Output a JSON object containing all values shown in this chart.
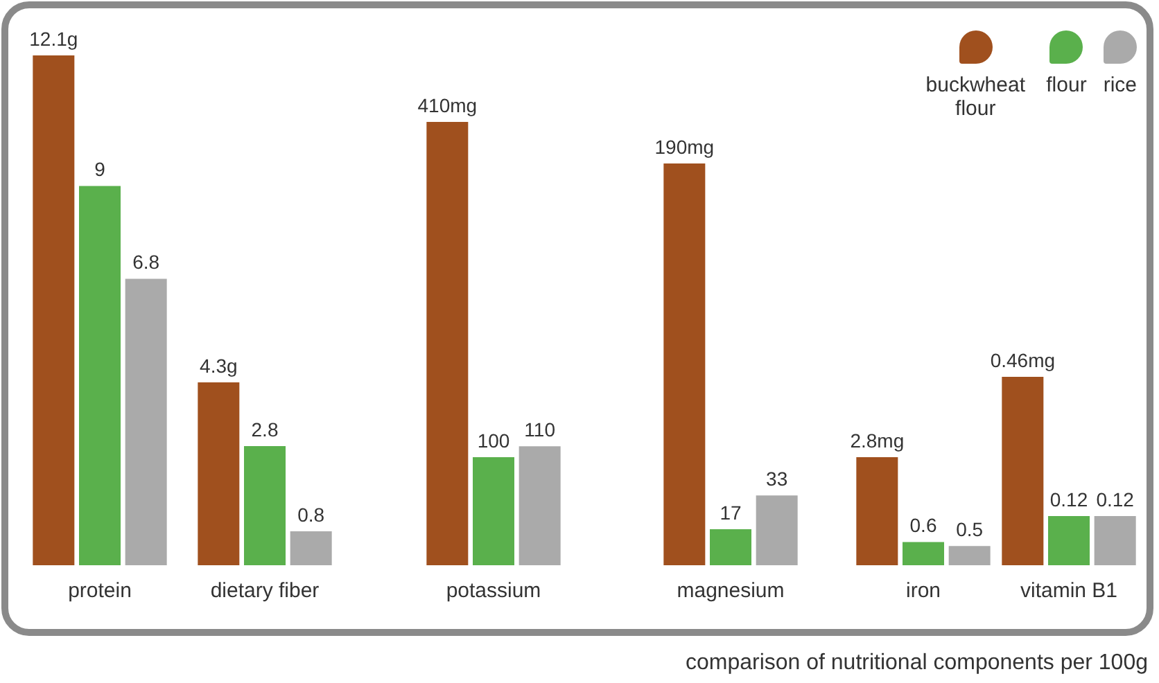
{
  "chart_data": [
    {
      "type": "bar",
      "categories": [
        "protein"
      ],
      "tick_labels": "x",
      "series": [
        {
          "color": "#a0501e",
          "values": [
            12.1
          ],
          "value_labels": [
            "12.1g"
          ]
        },
        {
          "color": "#5ab04c",
          "values": [
            9
          ],
          "value_labels": [
            "9"
          ]
        },
        {
          "color": "#aaaaaa",
          "values": [
            6.8
          ],
          "value_labels": [
            "6.8"
          ]
        }
      ]
    },
    {
      "type": "bar",
      "categories": [
        "dietary fiber"
      ],
      "tick_labels": "x",
      "series": [
        {
          "color": "#a0501e",
          "values": [
            4.3
          ],
          "value_labels": [
            "4.3g"
          ]
        },
        {
          "color": "#5ab04c",
          "values": [
            2.8
          ],
          "value_labels": [
            "2.8"
          ]
        },
        {
          "color": "#aaaaaa",
          "values": [
            0.8
          ],
          "value_labels": [
            "0.8"
          ]
        }
      ]
    },
    {
      "type": "bar",
      "categories": [
        "potassium"
      ],
      "tick_labels": "x",
      "series": [
        {
          "color": "#a0501e",
          "values": [
            410
          ],
          "value_labels": [
            "410mg"
          ]
        },
        {
          "color": "#5ab04c",
          "values": [
            100
          ],
          "value_labels": [
            "100"
          ]
        },
        {
          "color": "#aaaaaa",
          "values": [
            110
          ],
          "value_labels": [
            "110"
          ]
        }
      ]
    },
    {
      "type": "bar",
      "categories": [
        "magnesium"
      ],
      "tick_labels": "x",
      "series": [
        {
          "color": "#a0501e",
          "values": [
            190
          ],
          "value_labels": [
            "190mg"
          ]
        },
        {
          "color": "#5ab04c",
          "values": [
            17
          ],
          "value_labels": [
            "17"
          ]
        },
        {
          "color": "#aaaaaa",
          "values": [
            33
          ],
          "value_labels": [
            "33"
          ]
        }
      ]
    },
    {
      "type": "bar",
      "categories": [
        "iron"
      ],
      "tick_labels": "x",
      "legend": "top right",
      "series": [
        {
          "name": "buckwheat flour",
          "color": "#a0501e",
          "values": [
            2.8
          ],
          "value_labels": [
            "2.8mg"
          ]
        },
        {
          "name": "flour",
          "color": "#5ab04c",
          "values": [
            0.6
          ],
          "value_labels": [
            "0.6"
          ]
        },
        {
          "name": "rice",
          "color": "#aaaaaa",
          "values": [
            0.5
          ],
          "value_labels": [
            "0.5"
          ]
        }
      ]
    },
    {
      "type": "bar",
      "categories": [
        "vitamin B1"
      ],
      "tick_labels": "x",
      "annotations": [
        "comparison of nutritional components per 100g"
      ],
      "series": [
        {
          "color": "#a0501e",
          "values": [
            0.46
          ],
          "value_labels": [
            "0.46mg"
          ]
        },
        {
          "color": "#5ab04c",
          "values": [
            0.12
          ],
          "value_labels": [
            "0.12"
          ]
        },
        {
          "color": "#aaaaaa",
          "values": [
            0.12
          ],
          "value_labels": [
            "0.12"
          ]
        }
      ]
    }
  ]
}
